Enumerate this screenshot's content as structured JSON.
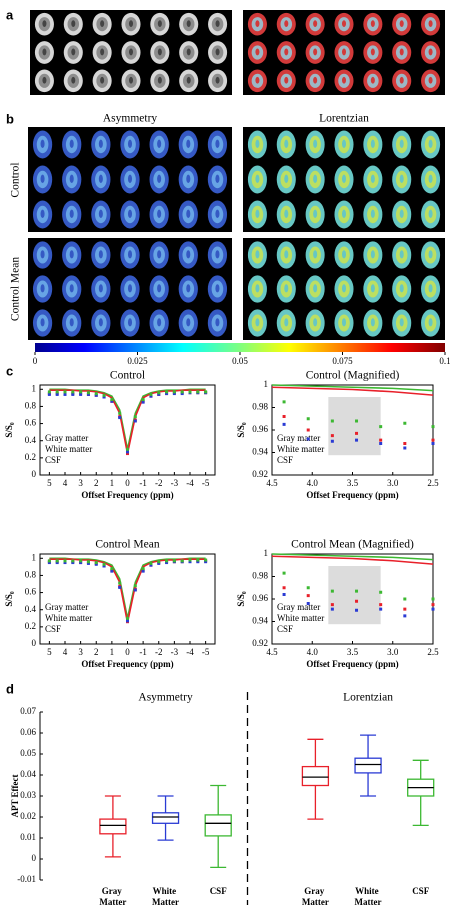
{
  "panel_labels": [
    "a",
    "b",
    "c",
    "d"
  ],
  "panel_b": {
    "column_titles": [
      "Asymmetry",
      "Lorentzian"
    ],
    "row_titles": [
      "Control",
      "Control Mean"
    ]
  },
  "colorbar": {
    "lim": [
      0,
      0.1
    ],
    "ticks": [
      0,
      0.025,
      0.05,
      0.075,
      0.1
    ]
  },
  "chart_data": [
    {
      "type": "line",
      "title": "Control",
      "xlabel": "Offset Frequency (ppm)",
      "ylabel": "S/S₀",
      "xlim": [
        5.6,
        -5.6
      ],
      "xticks": [
        5,
        4,
        3,
        2,
        1,
        0,
        -1,
        -2,
        -3,
        -4,
        -5
      ],
      "ylim": [
        0,
        1.05
      ],
      "yticks": [
        0,
        0.2,
        0.4,
        0.6,
        0.8,
        1
      ],
      "legend": "lower left",
      "x": [
        5,
        4.5,
        4,
        3.5,
        3,
        2.5,
        2,
        1.5,
        1,
        0.5,
        0,
        -0.5,
        -1,
        -1.5,
        -2,
        -2.5,
        -3,
        -3.5,
        -4,
        -4.5,
        -5
      ],
      "series": [
        {
          "style": "line",
          "color": "#3cb832",
          "values": [
            1,
            1,
            1,
            0.99,
            0.99,
            0.99,
            0.98,
            0.96,
            0.92,
            0.76,
            0.3,
            0.72,
            0.92,
            0.96,
            0.98,
            0.99,
            0.99,
            0.99,
            1,
            1,
            1
          ]
        },
        {
          "style": "line",
          "color": "#e8202a",
          "values": [
            0.99,
            0.99,
            0.99,
            0.99,
            0.98,
            0.98,
            0.97,
            0.95,
            0.9,
            0.72,
            0.25,
            0.68,
            0.9,
            0.95,
            0.97,
            0.98,
            0.98,
            0.99,
            0.99,
            0.99,
            0.99
          ]
        },
        {
          "style": "markers",
          "name": "Gray matter",
          "color": "#e8202a",
          "values": [
            0.95,
            0.95,
            0.95,
            0.95,
            0.95,
            0.94,
            0.93,
            0.91,
            0.86,
            0.68,
            0.25,
            0.64,
            0.86,
            0.92,
            0.94,
            0.95,
            0.96,
            0.96,
            0.96,
            0.96,
            0.96
          ]
        },
        {
          "style": "markers",
          "name": "White matter",
          "color": "#2a3bd4",
          "values": [
            0.94,
            0.94,
            0.94,
            0.94,
            0.94,
            0.94,
            0.93,
            0.91,
            0.86,
            0.67,
            0.27,
            0.63,
            0.85,
            0.92,
            0.94,
            0.95,
            0.95,
            0.95,
            0.96,
            0.96,
            0.96
          ]
        },
        {
          "style": "markers",
          "name": "CSF",
          "color": "#3cb832",
          "values": [
            0.97,
            0.97,
            0.97,
            0.97,
            0.97,
            0.96,
            0.95,
            0.93,
            0.88,
            0.72,
            0.3,
            0.68,
            0.88,
            0.94,
            0.96,
            0.97,
            0.97,
            0.97,
            0.97,
            0.97,
            0.97
          ]
        }
      ]
    },
    {
      "type": "line",
      "title": "Control (Magnified)",
      "xlabel": "Offset Frequency (ppm)",
      "ylabel": "S/S₀",
      "xlim": [
        4.5,
        2.5
      ],
      "xticks": [
        4.5,
        {
          "value": 4,
          "label": "4.0"
        },
        3.5,
        {
          "value": 3,
          "label": "3.0"
        },
        2.5
      ],
      "ylim": [
        0.92,
        1
      ],
      "yticks": [
        0.92,
        0.94,
        0.96,
        0.98,
        1
      ],
      "legend": "lower left",
      "highlight": [
        3.8,
        3.15
      ],
      "series": [
        {
          "style": "line",
          "color": "#3cb832",
          "x": [
            4.5,
            4,
            3.5,
            3,
            2.5
          ],
          "values": [
            1,
            0.999,
            0.998,
            0.997,
            0.995
          ]
        },
        {
          "style": "line",
          "color": "#e8202a",
          "x": [
            4.5,
            4,
            3.5,
            3,
            2.5
          ],
          "values": [
            0.998,
            0.997,
            0.996,
            0.994,
            0.991
          ]
        },
        {
          "style": "markers",
          "name": "Gray matter",
          "color": "#e8202a",
          "x": [
            4.35,
            4.05,
            3.75,
            3.45,
            3.15,
            2.85,
            2.5
          ],
          "values": [
            0.972,
            0.96,
            0.955,
            0.957,
            0.951,
            0.948,
            0.951
          ]
        },
        {
          "style": "markers",
          "name": "White matter",
          "color": "#2a3bd4",
          "x": [
            4.35,
            4.05,
            3.75,
            3.45,
            3.15,
            2.85,
            2.5
          ],
          "values": [
            0.965,
            0.952,
            0.95,
            0.951,
            0.948,
            0.944,
            0.948
          ]
        },
        {
          "style": "markers",
          "name": "CSF",
          "color": "#3cb832",
          "x": [
            4.35,
            4.05,
            3.75,
            3.45,
            3.15,
            2.85,
            2.5
          ],
          "values": [
            0.985,
            0.97,
            0.968,
            0.968,
            0.963,
            0.966,
            0.963
          ]
        }
      ]
    },
    {
      "type": "line",
      "title": "Control Mean",
      "xlabel": "Offset Frequency (ppm)",
      "ylabel": "S/S₀",
      "xlim": [
        5.6,
        -5.6
      ],
      "xticks": [
        5,
        4,
        3,
        2,
        1,
        0,
        -1,
        -2,
        -3,
        -4,
        -5
      ],
      "ylim": [
        0,
        1.05
      ],
      "yticks": [
        0,
        0.2,
        0.4,
        0.6,
        0.8,
        1
      ],
      "legend": "lower left",
      "x": [
        5,
        4.5,
        4,
        3.5,
        3,
        2.5,
        2,
        1.5,
        1,
        0.5,
        0,
        -0.5,
        -1,
        -1.5,
        -2,
        -2.5,
        -3,
        -3.5,
        -4,
        -4.5,
        -5
      ],
      "series": [
        {
          "style": "line",
          "color": "#3cb832",
          "values": [
            1,
            1,
            1,
            0.99,
            0.99,
            0.99,
            0.98,
            0.96,
            0.92,
            0.76,
            0.3,
            0.72,
            0.92,
            0.96,
            0.98,
            0.99,
            0.99,
            0.99,
            1,
            1,
            1
          ]
        },
        {
          "style": "line",
          "color": "#e8202a",
          "values": [
            0.99,
            0.99,
            0.99,
            0.99,
            0.98,
            0.98,
            0.97,
            0.95,
            0.9,
            0.72,
            0.25,
            0.68,
            0.9,
            0.95,
            0.97,
            0.98,
            0.98,
            0.99,
            0.99,
            0.99,
            0.99
          ]
        },
        {
          "style": "markers",
          "name": "Gray matter",
          "color": "#e8202a",
          "values": [
            0.96,
            0.96,
            0.96,
            0.96,
            0.95,
            0.95,
            0.94,
            0.91,
            0.86,
            0.67,
            0.26,
            0.64,
            0.86,
            0.92,
            0.95,
            0.96,
            0.96,
            0.96,
            0.97,
            0.97,
            0.97
          ]
        },
        {
          "style": "markers",
          "name": "White matter",
          "color": "#2a3bd4",
          "values": [
            0.95,
            0.95,
            0.95,
            0.95,
            0.95,
            0.94,
            0.93,
            0.91,
            0.85,
            0.66,
            0.27,
            0.63,
            0.85,
            0.92,
            0.94,
            0.95,
            0.96,
            0.96,
            0.96,
            0.96,
            0.96
          ]
        },
        {
          "style": "markers",
          "name": "CSF",
          "color": "#3cb832",
          "values": [
            0.97,
            0.97,
            0.97,
            0.97,
            0.97,
            0.96,
            0.95,
            0.93,
            0.88,
            0.71,
            0.3,
            0.68,
            0.88,
            0.94,
            0.96,
            0.97,
            0.97,
            0.97,
            0.98,
            0.98,
            0.98
          ]
        }
      ]
    },
    {
      "type": "line",
      "title": "Control Mean (Magnified)",
      "xlabel": "Offset Frequency (ppm)",
      "ylabel": "S/S₀",
      "xlim": [
        4.5,
        2.5
      ],
      "xticks": [
        4.5,
        {
          "value": 4,
          "label": "4.0"
        },
        3.5,
        {
          "value": 3,
          "label": "3.0"
        },
        2.5
      ],
      "ylim": [
        0.92,
        1
      ],
      "yticks": [
        0.92,
        0.94,
        0.96,
        0.98,
        1
      ],
      "legend": "lower left",
      "highlight": [
        3.8,
        3.15
      ],
      "series": [
        {
          "style": "line",
          "color": "#3cb832",
          "x": [
            4.5,
            4,
            3.5,
            3,
            2.5
          ],
          "values": [
            1,
            0.999,
            0.998,
            0.997,
            0.995
          ]
        },
        {
          "style": "line",
          "color": "#e8202a",
          "x": [
            4.5,
            4,
            3.5,
            3,
            2.5
          ],
          "values": [
            0.998,
            0.997,
            0.996,
            0.994,
            0.991
          ]
        },
        {
          "style": "markers",
          "name": "Gray matter",
          "color": "#e8202a",
          "x": [
            4.35,
            4.05,
            3.75,
            3.45,
            3.15,
            2.85,
            2.5
          ],
          "values": [
            0.97,
            0.963,
            0.955,
            0.958,
            0.955,
            0.951,
            0.955
          ]
        },
        {
          "style": "markers",
          "name": "White matter",
          "color": "#2a3bd4",
          "x": [
            4.35,
            4.05,
            3.75,
            3.45,
            3.15,
            2.85,
            2.5
          ],
          "values": [
            0.964,
            0.956,
            0.951,
            0.95,
            0.951,
            0.945,
            0.951
          ]
        },
        {
          "style": "markers",
          "name": "CSF",
          "color": "#3cb832",
          "x": [
            4.35,
            4.05,
            3.75,
            3.45,
            3.15,
            2.85,
            2.5
          ],
          "values": [
            0.983,
            0.97,
            0.967,
            0.967,
            0.966,
            0.96,
            0.96
          ]
        }
      ]
    },
    {
      "type": "box",
      "ylabel": "APT Effect",
      "ylim": [
        -0.01,
        0.07
      ],
      "yticks": [
        -0.01,
        0,
        0.01,
        0.02,
        0.03,
        0.04,
        0.05,
        0.06,
        0.07
      ],
      "groups": [
        {
          "title": "Asymmetry",
          "boxes": [
            {
              "category": "Gray Matter",
              "color": "#e8202a",
              "min": 0.001,
              "q1": 0.012,
              "median": 0.016,
              "q3": 0.019,
              "max": 0.03
            },
            {
              "category": "White Matter",
              "color": "#2a3bd4",
              "min": 0.009,
              "q1": 0.017,
              "median": 0.02,
              "q3": 0.022,
              "max": 0.03
            },
            {
              "category": "CSF",
              "color": "#3cb832",
              "min": -0.004,
              "q1": 0.011,
              "median": 0.017,
              "q3": 0.021,
              "max": 0.035
            }
          ]
        },
        {
          "title": "Lorentzian",
          "boxes": [
            {
              "category": "Gray Matter",
              "color": "#e8202a",
              "min": 0.019,
              "q1": 0.035,
              "median": 0.039,
              "q3": 0.044,
              "max": 0.057
            },
            {
              "category": "White Matter",
              "color": "#2a3bd4",
              "min": 0.03,
              "q1": 0.041,
              "median": 0.045,
              "q3": 0.048,
              "max": 0.059
            },
            {
              "category": "CSF",
              "color": "#3cb832",
              "min": 0.016,
              "q1": 0.03,
              "median": 0.034,
              "q3": 0.038,
              "max": 0.047
            }
          ]
        }
      ]
    }
  ]
}
